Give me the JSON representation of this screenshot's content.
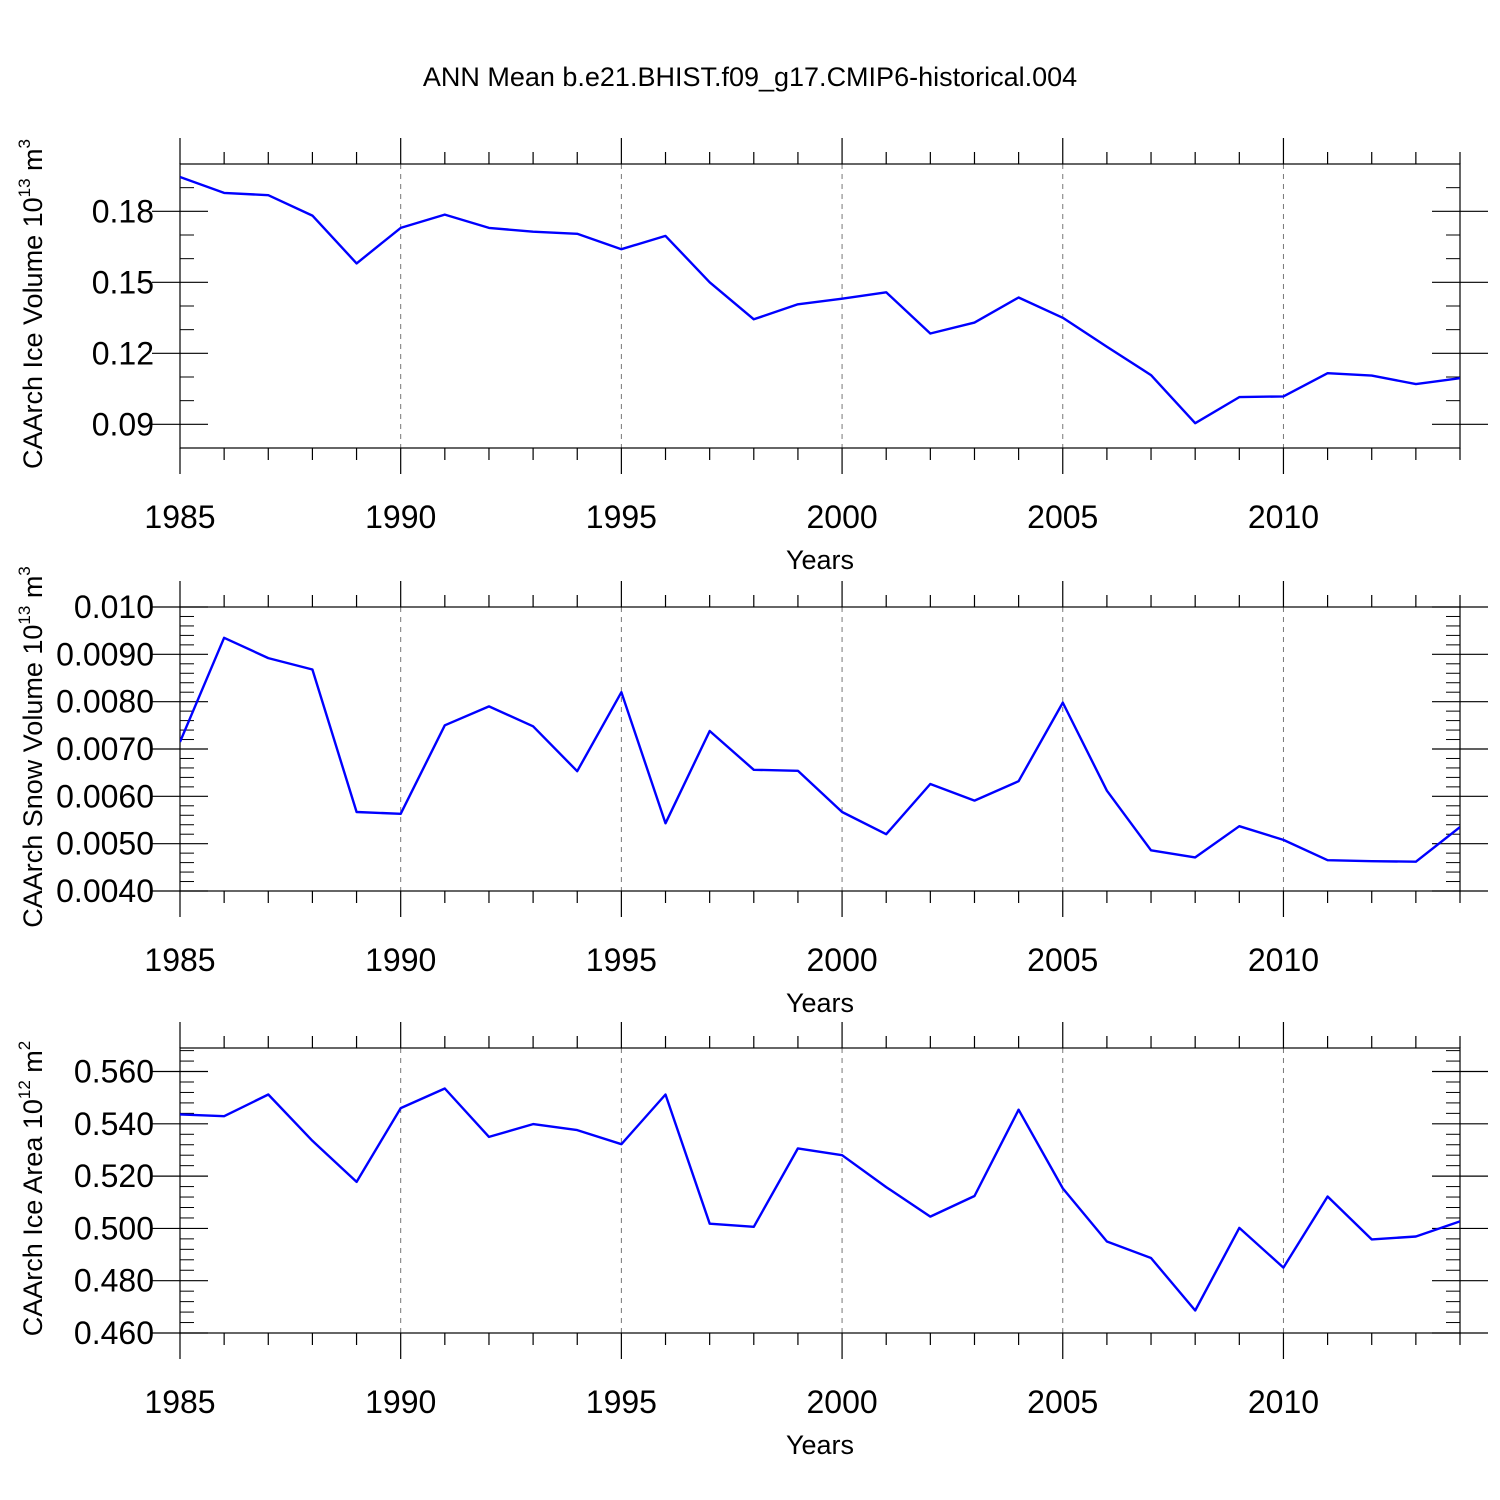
{
  "title": "ANN Mean b.e21.BHIST.f09_g17.CMIP6-historical.004",
  "line_color": "#0000ff",
  "chart_data": [
    {
      "type": "line",
      "xlabel": "Years",
      "ylabel": "CAArch Ice Volume 10",
      "ylabel_exp": "13",
      "ylabel_unit": " m",
      "ylabel_unit_exp": "3",
      "xlim": [
        1985,
        2014
      ],
      "ylim": [
        0.08,
        0.2
      ],
      "yticks": [
        0.09,
        0.12,
        0.15,
        0.18
      ],
      "ytick_labels": [
        "0.09",
        "0.12",
        "0.15",
        "0.18"
      ],
      "yminor_step": 0.01,
      "xticks": [
        1985,
        1990,
        1995,
        2000,
        2005,
        2010
      ],
      "xtick_labels": [
        "1985",
        "1990",
        "1995",
        "2000",
        "2005",
        "2010"
      ],
      "x": [
        1985,
        1986,
        1987,
        1988,
        1989,
        1990,
        1991,
        1992,
        1993,
        1994,
        1995,
        1996,
        1997,
        1998,
        1999,
        2000,
        2001,
        2002,
        2003,
        2004,
        2005,
        2006,
        2007,
        2008,
        2009,
        2010,
        2011,
        2012,
        2013,
        2014
      ],
      "values": [
        0.1945,
        0.1878,
        0.1868,
        0.1782,
        0.158,
        0.173,
        0.1786,
        0.173,
        0.1714,
        0.1705,
        0.164,
        0.1696,
        0.15,
        0.1344,
        0.1407,
        0.1431,
        0.1458,
        0.1284,
        0.133,
        0.1436,
        0.135,
        0.1228,
        0.1108,
        0.0905,
        0.1015,
        0.1018,
        0.1116,
        0.1106,
        0.107,
        0.1095
      ]
    },
    {
      "type": "line",
      "xlabel": "Years",
      "ylabel": "CAArch Snow Volume 10",
      "ylabel_exp": "13",
      "ylabel_unit": " m",
      "ylabel_unit_exp": "3",
      "xlim": [
        1985,
        2014
      ],
      "ylim": [
        0.004,
        0.01
      ],
      "yticks": [
        0.004,
        0.005,
        0.006,
        0.007,
        0.008,
        0.009,
        0.01
      ],
      "ytick_labels": [
        "0.0040",
        "0.0050",
        "0.0060",
        "0.0070",
        "0.0080",
        "0.0090",
        "0.010"
      ],
      "yminor_step": 0.0002,
      "xticks": [
        1985,
        1990,
        1995,
        2000,
        2005,
        2010
      ],
      "xtick_labels": [
        "1985",
        "1990",
        "1995",
        "2000",
        "2005",
        "2010"
      ],
      "x": [
        1985,
        1986,
        1987,
        1988,
        1989,
        1990,
        1991,
        1992,
        1993,
        1994,
        1995,
        1996,
        1997,
        1998,
        1999,
        2000,
        2001,
        2002,
        2003,
        2004,
        2005,
        2006,
        2007,
        2008,
        2009,
        2010,
        2011,
        2012,
        2013,
        2014
      ],
      "values": [
        0.00715,
        0.00935,
        0.00892,
        0.00868,
        0.00567,
        0.00563,
        0.0075,
        0.0079,
        0.00748,
        0.00653,
        0.0082,
        0.00543,
        0.00738,
        0.00656,
        0.00654,
        0.00567,
        0.0052,
        0.00626,
        0.00591,
        0.00632,
        0.00798,
        0.00612,
        0.00486,
        0.00471,
        0.00537,
        0.00508,
        0.00465,
        0.00463,
        0.00462,
        0.00535
      ]
    },
    {
      "type": "line",
      "xlabel": "Years",
      "ylabel": "CAArch Ice Area 10",
      "ylabel_exp": "12",
      "ylabel_unit": " m",
      "ylabel_unit_exp": "2",
      "xlim": [
        1985,
        2014
      ],
      "ylim": [
        0.46,
        0.569
      ],
      "yticks": [
        0.46,
        0.48,
        0.5,
        0.52,
        0.54,
        0.56
      ],
      "ytick_labels": [
        "0.460",
        "0.480",
        "0.500",
        "0.520",
        "0.540",
        "0.560"
      ],
      "yminor_step": 0.004,
      "xticks": [
        1985,
        1990,
        1995,
        2000,
        2005,
        2010
      ],
      "xtick_labels": [
        "1985",
        "1990",
        "1995",
        "2000",
        "2005",
        "2010"
      ],
      "x": [
        1985,
        1986,
        1987,
        1988,
        1989,
        1990,
        1991,
        1992,
        1993,
        1994,
        1995,
        1996,
        1997,
        1998,
        1999,
        2000,
        2001,
        2002,
        2003,
        2004,
        2005,
        2006,
        2007,
        2008,
        2009,
        2010,
        2011,
        2012,
        2013,
        2014
      ],
      "values": [
        0.5436,
        0.5429,
        0.5512,
        0.5335,
        0.5178,
        0.546,
        0.5535,
        0.535,
        0.5399,
        0.5376,
        0.5322,
        0.5512,
        0.5018,
        0.5006,
        0.5306,
        0.528,
        0.5158,
        0.5045,
        0.5124,
        0.5454,
        0.5153,
        0.495,
        0.4887,
        0.4686,
        0.5002,
        0.485,
        0.5122,
        0.4958,
        0.4969,
        0.5027
      ]
    }
  ]
}
